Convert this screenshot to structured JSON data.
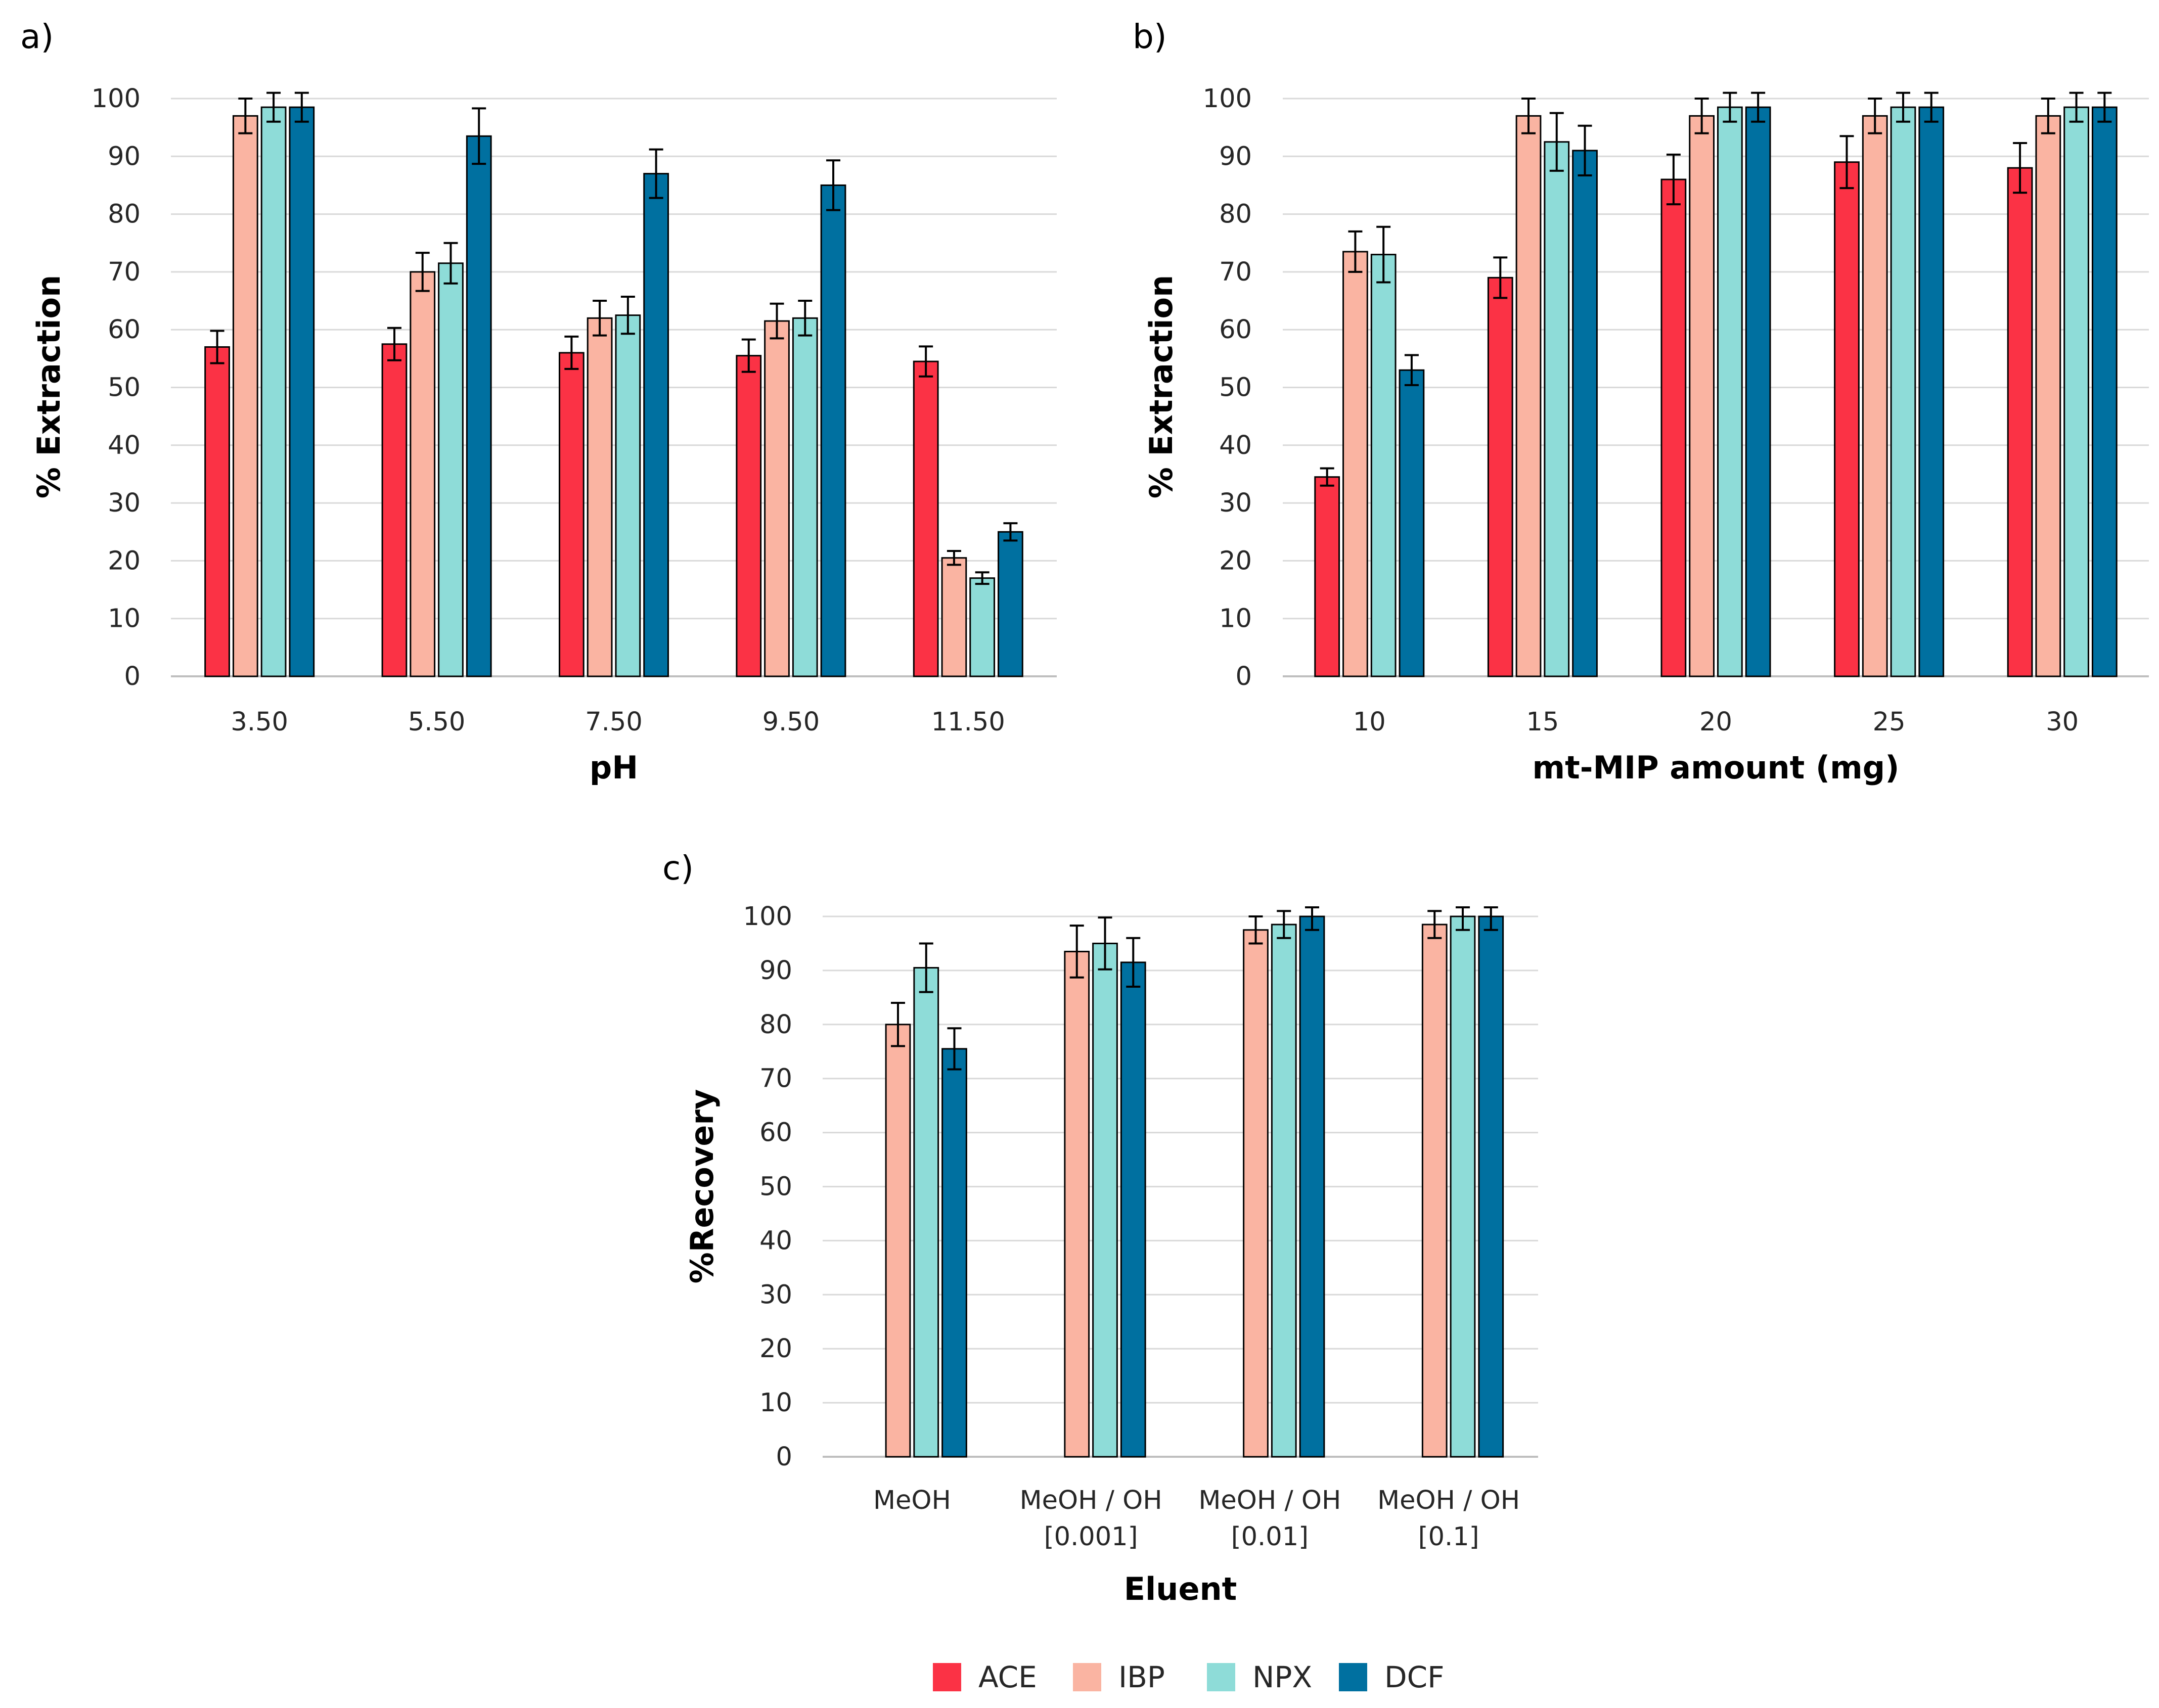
{
  "colors": {
    "ACE": "#FB3245",
    "IBP": "#FAB4A2",
    "NPX": "#8EDCD8",
    "DCF": "#0070A0"
  },
  "legend": [
    "ACE",
    "IBP",
    "NPX",
    "DCF"
  ],
  "chart_data": [
    {
      "panel_label": "a)",
      "type": "bar",
      "title": "",
      "xlabel": "pH",
      "ylabel": "% Extraction",
      "ylim": [
        0,
        100
      ],
      "yticks": [
        "0",
        "10",
        "20",
        "30",
        "40",
        "50",
        "60",
        "70",
        "80",
        "90",
        "100"
      ],
      "categories": [
        "3.50",
        "5.50",
        "7.50",
        "9.50",
        "11.50"
      ],
      "series": [
        {
          "name": "ACE",
          "values": [
            57,
            57.5,
            56,
            55.5,
            54.5
          ],
          "errors": [
            2.8,
            2.8,
            2.8,
            2.8,
            2.6
          ]
        },
        {
          "name": "IBP",
          "values": [
            97,
            70,
            62,
            61.5,
            20.5
          ],
          "errors": [
            3,
            3.3,
            3,
            3,
            1.2
          ]
        },
        {
          "name": "NPX",
          "values": [
            98.5,
            71.5,
            62.5,
            62,
            17
          ],
          "errors": [
            2.5,
            3.5,
            3.2,
            3,
            1
          ]
        },
        {
          "name": "DCF",
          "values": [
            98.5,
            93.5,
            87,
            85,
            25
          ],
          "errors": [
            2.5,
            4.8,
            4.2,
            4.3,
            1.5
          ]
        }
      ]
    },
    {
      "panel_label": "b)",
      "type": "bar",
      "title": "",
      "xlabel": "mt-MIP amount (mg)",
      "ylabel": "% Extraction",
      "ylim": [
        0,
        100
      ],
      "yticks": [
        "0",
        "10",
        "20",
        "30",
        "40",
        "50",
        "60",
        "70",
        "80",
        "90",
        "100"
      ],
      "categories": [
        "10",
        "15",
        "20",
        "25",
        "30"
      ],
      "series": [
        {
          "name": "ACE",
          "values": [
            34.5,
            69,
            86,
            89,
            88
          ],
          "errors": [
            1.5,
            3.5,
            4.3,
            4.5,
            4.3
          ]
        },
        {
          "name": "IBP",
          "values": [
            73.5,
            97,
            97,
            97,
            97
          ],
          "errors": [
            3.5,
            3,
            3,
            3,
            3
          ]
        },
        {
          "name": "NPX",
          "values": [
            73,
            92.5,
            98.5,
            98.5,
            98.5
          ],
          "errors": [
            4.8,
            5,
            2.5,
            2.5,
            2.5
          ]
        },
        {
          "name": "DCF",
          "values": [
            53,
            91,
            98.5,
            98.5,
            98.5
          ],
          "errors": [
            2.6,
            4.3,
            2.5,
            2.5,
            2.5
          ]
        }
      ]
    },
    {
      "panel_label": "c)",
      "type": "bar",
      "title": "",
      "xlabel": "Eluent",
      "ylabel": "%Recovery",
      "ylim": [
        0,
        100
      ],
      "yticks": [
        "0",
        "10",
        "20",
        "30",
        "40",
        "50",
        "60",
        "70",
        "80",
        "90",
        "100"
      ],
      "categories": [
        [
          "MeOH"
        ],
        [
          "MeOH / OH",
          "[0.001]"
        ],
        [
          "MeOH / OH",
          "[0.01]"
        ],
        [
          "MeOH / OH",
          "[0.1]"
        ]
      ],
      "series": [
        {
          "name": "ACE",
          "values": [
            0,
            0,
            0,
            0
          ],
          "errors": [
            0,
            0,
            0,
            0
          ]
        },
        {
          "name": "IBP",
          "values": [
            80,
            93.5,
            97.5,
            98.5
          ],
          "errors": [
            4,
            4.8,
            2.5,
            2.5
          ]
        },
        {
          "name": "NPX",
          "values": [
            90.5,
            95,
            98.5,
            100
          ],
          "errors": [
            4.5,
            4.8,
            2.5,
            2.5
          ]
        },
        {
          "name": "DCF",
          "values": [
            75.5,
            91.5,
            100,
            100
          ],
          "errors": [
            3.8,
            4.5,
            2.5,
            2.5
          ]
        }
      ]
    }
  ]
}
